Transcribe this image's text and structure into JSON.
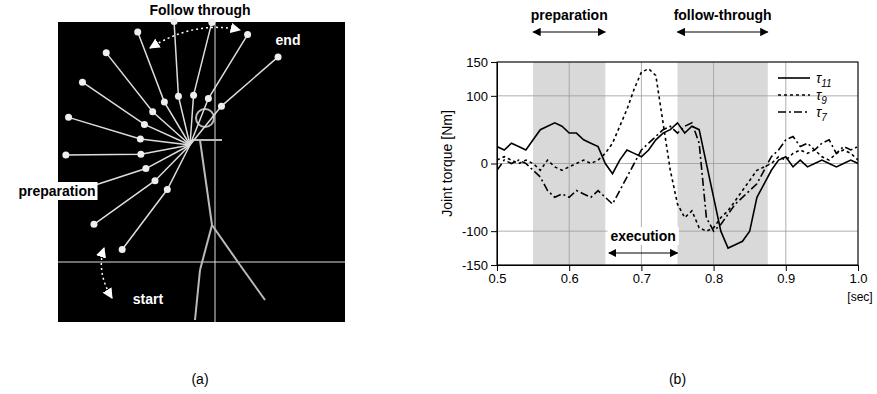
{
  "diagram": {
    "title": "Follow through",
    "labels": [
      "end",
      "preparation",
      "start"
    ],
    "caption": "(a)"
  },
  "chart_data": {
    "type": "line",
    "caption": "(b)",
    "y_label": "Joint torque  [Nm]",
    "x_label": "[sec]",
    "x": [
      0.5,
      0.51,
      0.52,
      0.53,
      0.54,
      0.55,
      0.56,
      0.57,
      0.58,
      0.59,
      0.6,
      0.61,
      0.62,
      0.63,
      0.64,
      0.65,
      0.66,
      0.67,
      0.68,
      0.69,
      0.7,
      0.71,
      0.72,
      0.73,
      0.74,
      0.75,
      0.76,
      0.77,
      0.78,
      0.79,
      0.8,
      0.81,
      0.82,
      0.83,
      0.84,
      0.85,
      0.86,
      0.87,
      0.88,
      0.89,
      0.9,
      0.91,
      0.92,
      0.93,
      0.94,
      0.95,
      0.96,
      0.97,
      0.98,
      0.99,
      1.0
    ],
    "series": [
      {
        "name": "τ11",
        "color": "#000000",
        "line_style": "solid",
        "values": [
          25,
          20,
          30,
          25,
          20,
          35,
          50,
          55,
          60,
          55,
          45,
          45,
          35,
          30,
          25,
          0,
          -15,
          5,
          20,
          15,
          10,
          20,
          35,
          45,
          50,
          60,
          45,
          55,
          50,
          0,
          -50,
          -100,
          -125,
          -120,
          -115,
          -100,
          -50,
          -30,
          -10,
          5,
          10,
          -5,
          5,
          -5,
          0,
          5,
          0,
          -5,
          0,
          5,
          0
        ]
      },
      {
        "name": "τ9",
        "color": "#000000",
        "line_style": "dotted",
        "values": [
          5,
          10,
          5,
          0,
          5,
          0,
          -10,
          5,
          -5,
          -10,
          -5,
          0,
          5,
          0,
          5,
          15,
          30,
          55,
          80,
          110,
          135,
          140,
          130,
          60,
          -10,
          -60,
          -80,
          -70,
          -95,
          -100,
          -95,
          -80,
          -70,
          -55,
          -40,
          -25,
          -10,
          -5,
          0,
          10,
          5,
          15,
          20,
          15,
          20,
          10,
          5,
          15,
          20,
          15,
          5
        ]
      },
      {
        "name": "τ7",
        "color": "#000000",
        "line_style": "dashdot",
        "values": [
          -10,
          5,
          0,
          5,
          0,
          -10,
          -20,
          -40,
          -50,
          -45,
          -50,
          -40,
          -45,
          -50,
          -40,
          -50,
          -60,
          -40,
          -20,
          0,
          20,
          30,
          40,
          50,
          55,
          45,
          55,
          60,
          30,
          -80,
          -100,
          -90,
          -75,
          -60,
          -50,
          -40,
          -30,
          -10,
          10,
          20,
          35,
          40,
          25,
          30,
          20,
          30,
          35,
          15,
          25,
          20,
          25
        ]
      }
    ],
    "shaded_spans": [
      {
        "text": "preparation",
        "range": [
          0.55,
          0.65
        ]
      },
      {
        "text": "follow-through",
        "range": [
          0.75,
          0.875
        ]
      }
    ],
    "arrow_annotations": [
      {
        "text": "execution",
        "range": [
          0.655,
          0.75
        ]
      }
    ],
    "xlim": [
      0.5,
      1.0
    ],
    "xticks": [
      0.5,
      0.6,
      0.7,
      0.8,
      0.9,
      {
        "value": 1.0,
        "label": "1.0"
      }
    ],
    "ylim": [
      -150,
      150
    ],
    "yticks": [
      -150,
      -100,
      0,
      100,
      150
    ],
    "grid": true,
    "legend": "top-right"
  }
}
